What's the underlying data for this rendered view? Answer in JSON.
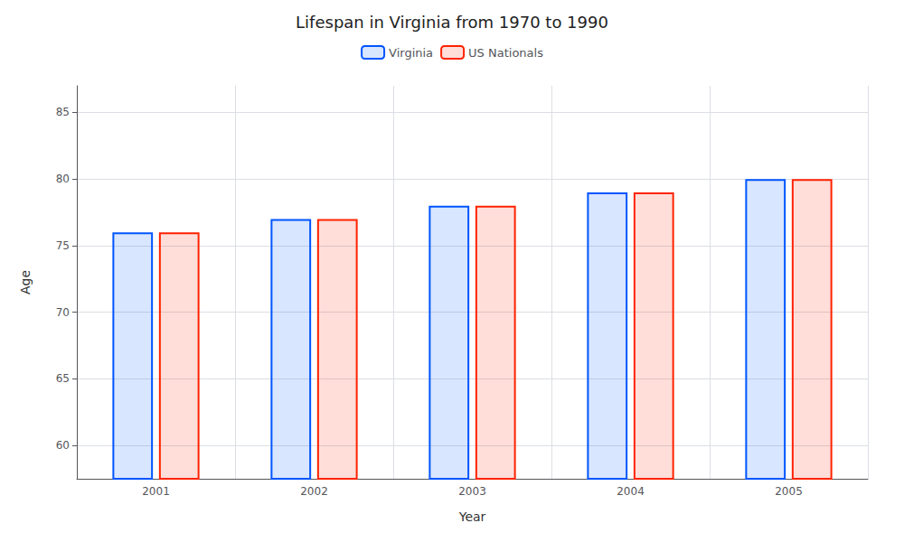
{
  "chart_data": {
    "type": "bar",
    "title": "Lifespan in Virginia from 1970 to 1990",
    "x_label": "Year",
    "y_label": "Age",
    "categories": [
      "2001",
      "2002",
      "2003",
      "2004",
      "2005"
    ],
    "series": [
      {
        "name": "Virginia",
        "color": "#0055ff",
        "values": [
          76,
          77,
          78,
          79,
          80
        ]
      },
      {
        "name": "US Nationals",
        "color": "#ff2200",
        "values": [
          76,
          77,
          78,
          79,
          80
        ]
      }
    ],
    "ylim": [
      57.5,
      87
    ],
    "yticks": [
      60,
      65,
      70,
      75,
      80,
      85
    ],
    "grid": true,
    "legend": "top"
  }
}
